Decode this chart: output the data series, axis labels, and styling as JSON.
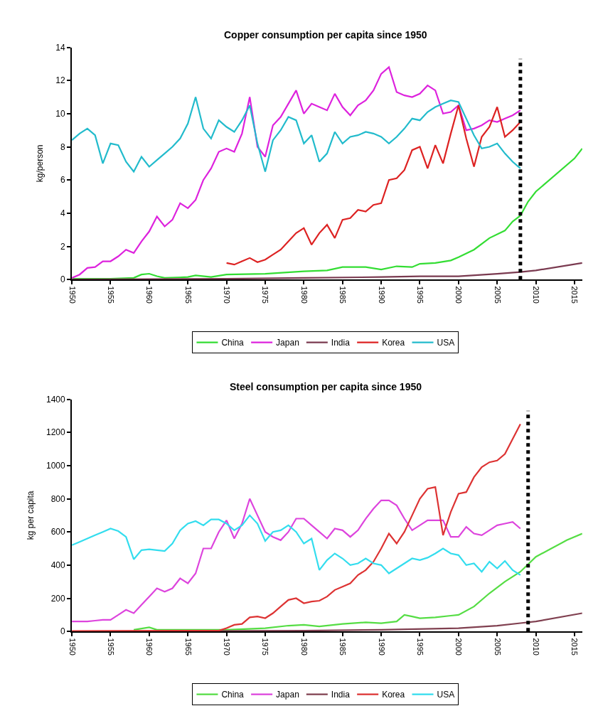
{
  "chart_data": [
    {
      "type": "line",
      "title": "Copper consumption per capita since 1950",
      "ylabel": "kg/person",
      "xlim": [
        1950,
        2016
      ],
      "xticks": [
        1950,
        1955,
        1960,
        1965,
        1970,
        1975,
        1980,
        1985,
        1990,
        1995,
        2000,
        2005,
        2010,
        2015
      ],
      "ylim": [
        0,
        14
      ],
      "yticks": [
        0,
        2,
        4,
        6,
        8,
        10,
        12,
        14
      ],
      "legend": "bottom",
      "ref_lines": [
        {
          "axis": "x",
          "value": 2008,
          "color": "#000000",
          "line_style": "dotted"
        }
      ],
      "series": [
        {
          "name": "China",
          "color": "#33dd33",
          "x": [
            1950,
            1955,
            1958,
            1959,
            1960,
            1961,
            1962,
            1965,
            1966,
            1968,
            1970,
            1975,
            1980,
            1983,
            1985,
            1988,
            1990,
            1992,
            1994,
            1995,
            1997,
            1999,
            2000,
            2002,
            2004,
            2006,
            2007,
            2008,
            2009,
            2010,
            2015,
            2016
          ],
          "values": [
            0.05,
            0.05,
            0.1,
            0.3,
            0.35,
            0.2,
            0.1,
            0.15,
            0.25,
            0.15,
            0.3,
            0.35,
            0.5,
            0.55,
            0.75,
            0.75,
            0.6,
            0.8,
            0.75,
            0.95,
            1.0,
            1.15,
            1.35,
            1.8,
            2.5,
            2.95,
            3.5,
            3.85,
            4.7,
            5.3,
            7.3,
            7.9
          ]
        },
        {
          "name": "Japan",
          "color": "#dd22dd",
          "x": [
            1950,
            1951,
            1952,
            1953,
            1954,
            1955,
            1956,
            1957,
            1958,
            1959,
            1960,
            1961,
            1962,
            1963,
            1964,
            1965,
            1966,
            1967,
            1968,
            1969,
            1970,
            1971,
            1972,
            1973,
            1974,
            1975,
            1976,
            1977,
            1978,
            1979,
            1980,
            1981,
            1982,
            1983,
            1984,
            1985,
            1986,
            1987,
            1988,
            1989,
            1990,
            1991,
            1992,
            1993,
            1994,
            1995,
            1996,
            1997,
            1998,
            1999,
            2000,
            2001,
            2002,
            2003,
            2004,
            2005,
            2006,
            2007,
            2008
          ],
          "values": [
            0.1,
            0.3,
            0.7,
            0.75,
            1.1,
            1.1,
            1.4,
            1.8,
            1.6,
            2.3,
            2.9,
            3.8,
            3.2,
            3.6,
            4.6,
            4.3,
            4.8,
            6.0,
            6.7,
            7.7,
            7.9,
            7.7,
            8.8,
            11.0,
            8.0,
            7.4,
            9.3,
            9.8,
            10.6,
            11.4,
            10.0,
            10.6,
            10.4,
            10.2,
            11.2,
            10.4,
            9.9,
            10.5,
            10.8,
            11.4,
            12.4,
            12.8,
            11.3,
            11.1,
            11.0,
            11.2,
            11.7,
            11.4,
            10.0,
            10.1,
            10.5,
            9.0,
            9.1,
            9.3,
            9.6,
            9.5,
            9.7,
            9.9,
            10.2
          ]
        },
        {
          "name": "India",
          "color": "#7a3a50",
          "x": [
            1950,
            1970,
            1980,
            1990,
            1995,
            2000,
            2005,
            2008,
            2010,
            2016
          ],
          "values": [
            0,
            0.05,
            0.1,
            0.15,
            0.2,
            0.2,
            0.35,
            0.45,
            0.55,
            1.0
          ]
        },
        {
          "name": "Korea",
          "color": "#dd2222",
          "x": [
            1970,
            1971,
            1972,
            1973,
            1974,
            1975,
            1976,
            1977,
            1978,
            1979,
            1980,
            1981,
            1982,
            1983,
            1984,
            1985,
            1986,
            1987,
            1988,
            1989,
            1990,
            1991,
            1992,
            1993,
            1994,
            1995,
            1996,
            1997,
            1998,
            1999,
            2000,
            2001,
            2002,
            2003,
            2004,
            2005,
            2006,
            2007,
            2008
          ],
          "values": [
            1.0,
            0.9,
            1.1,
            1.3,
            1.05,
            1.2,
            1.5,
            1.8,
            2.3,
            2.8,
            3.1,
            2.1,
            2.8,
            3.3,
            2.5,
            3.6,
            3.7,
            4.2,
            4.1,
            4.5,
            4.6,
            6.0,
            6.1,
            6.6,
            7.8,
            8.0,
            6.7,
            8.1,
            7.0,
            8.8,
            10.5,
            8.5,
            6.8,
            8.6,
            9.2,
            10.4,
            8.6,
            9.0,
            9.5
          ]
        },
        {
          "name": "USA",
          "color": "#22bbcc",
          "x": [
            1950,
            1951,
            1952,
            1953,
            1954,
            1955,
            1956,
            1957,
            1958,
            1959,
            1960,
            1961,
            1962,
            1963,
            1964,
            1965,
            1966,
            1967,
            1968,
            1969,
            1970,
            1971,
            1972,
            1973,
            1974,
            1975,
            1976,
            1977,
            1978,
            1979,
            1980,
            1981,
            1982,
            1983,
            1984,
            1985,
            1986,
            1987,
            1988,
            1989,
            1990,
            1991,
            1992,
            1993,
            1994,
            1995,
            1996,
            1997,
            1998,
            1999,
            2000,
            2001,
            2002,
            2003,
            2004,
            2005,
            2006,
            2007,
            2008
          ],
          "values": [
            8.4,
            8.8,
            9.1,
            8.7,
            7.0,
            8.2,
            8.1,
            7.1,
            6.5,
            7.4,
            6.8,
            7.2,
            7.6,
            8.0,
            8.5,
            9.4,
            11.0,
            9.1,
            8.5,
            9.6,
            9.2,
            8.9,
            9.6,
            10.5,
            8.2,
            6.5,
            8.4,
            9.0,
            9.8,
            9.6,
            8.2,
            8.7,
            7.1,
            7.6,
            8.9,
            8.2,
            8.6,
            8.7,
            8.9,
            8.8,
            8.6,
            8.2,
            8.6,
            9.1,
            9.7,
            9.6,
            10.1,
            10.4,
            10.6,
            10.8,
            10.7,
            9.7,
            8.7,
            7.9,
            8.0,
            8.2,
            7.6,
            7.1,
            6.7
          ]
        }
      ]
    },
    {
      "type": "line",
      "title": "Steel consumption per capita since 1950",
      "ylabel": "kg per capita",
      "xlim": [
        1950,
        2016
      ],
      "xticks": [
        1950,
        1955,
        1960,
        1965,
        1970,
        1975,
        1980,
        1985,
        1990,
        1995,
        2000,
        2005,
        2010,
        2015
      ],
      "ylim": [
        0,
        1400
      ],
      "yticks": [
        0,
        200,
        400,
        600,
        800,
        1000,
        1200,
        1400
      ],
      "legend": "bottom",
      "ref_lines": [
        {
          "axis": "x",
          "value": 2009,
          "color": "#000000",
          "line_style": "dotted"
        }
      ],
      "series": [
        {
          "name": "China",
          "color": "#55dd44",
          "x": [
            1958,
            1960,
            1961,
            1970,
            1975,
            1978,
            1980,
            1982,
            1985,
            1988,
            1990,
            1992,
            1993,
            1994,
            1995,
            1997,
            1999,
            2000,
            2002,
            2004,
            2006,
            2008,
            2010,
            2012,
            2014,
            2016
          ],
          "values": [
            10,
            25,
            10,
            10,
            20,
            35,
            40,
            30,
            45,
            55,
            50,
            60,
            100,
            90,
            80,
            85,
            95,
            100,
            150,
            230,
            300,
            360,
            450,
            500,
            550,
            590
          ]
        },
        {
          "name": "Japan",
          "color": "#dd44dd",
          "x": [
            1950,
            1951,
            1952,
            1953,
            1954,
            1955,
            1956,
            1957,
            1958,
            1959,
            1960,
            1961,
            1962,
            1963,
            1964,
            1965,
            1966,
            1967,
            1968,
            1969,
            1970,
            1971,
            1972,
            1973,
            1974,
            1975,
            1976,
            1977,
            1978,
            1979,
            1980,
            1981,
            1982,
            1983,
            1984,
            1985,
            1986,
            1987,
            1988,
            1989,
            1990,
            1991,
            1992,
            1993,
            1994,
            1995,
            1996,
            1997,
            1998,
            1999,
            2000,
            2001,
            2002,
            2003,
            2004,
            2005,
            2006,
            2007,
            2008
          ],
          "values": [
            60,
            60,
            60,
            65,
            70,
            70,
            100,
            130,
            110,
            160,
            210,
            260,
            240,
            260,
            320,
            290,
            350,
            500,
            500,
            600,
            670,
            560,
            650,
            800,
            700,
            600,
            570,
            550,
            600,
            680,
            680,
            640,
            600,
            560,
            620,
            610,
            570,
            610,
            680,
            740,
            790,
            790,
            760,
            680,
            610,
            640,
            670,
            670,
            670,
            570,
            570,
            630,
            590,
            580,
            610,
            640,
            650,
            660,
            620
          ]
        },
        {
          "name": "India",
          "color": "#804050",
          "x": [
            1950,
            1980,
            1990,
            2000,
            2005,
            2008,
            2010,
            2016
          ],
          "values": [
            0,
            5,
            10,
            20,
            35,
            50,
            60,
            110
          ]
        },
        {
          "name": "Korea",
          "color": "#dd3333",
          "x": [
            1950,
            1969,
            1970,
            1971,
            1972,
            1973,
            1974,
            1975,
            1976,
            1977,
            1978,
            1979,
            1980,
            1981,
            1982,
            1983,
            1984,
            1985,
            1986,
            1987,
            1988,
            1989,
            1990,
            1991,
            1992,
            1993,
            1994,
            1995,
            1996,
            1997,
            1998,
            1999,
            2000,
            2001,
            2002,
            2003,
            2004,
            2005,
            2006,
            2007,
            2008
          ],
          "values": [
            3,
            5,
            20,
            40,
            45,
            85,
            90,
            80,
            110,
            150,
            190,
            200,
            170,
            180,
            185,
            210,
            250,
            270,
            290,
            340,
            370,
            420,
            500,
            590,
            530,
            600,
            700,
            800,
            860,
            870,
            580,
            720,
            830,
            840,
            930,
            990,
            1020,
            1030,
            1070,
            1160,
            1250
          ]
        },
        {
          "name": "USA",
          "color": "#33ddee",
          "x": [
            1950,
            1951,
            1952,
            1953,
            1954,
            1955,
            1956,
            1957,
            1958,
            1959,
            1960,
            1961,
            1962,
            1963,
            1964,
            1965,
            1966,
            1967,
            1968,
            1969,
            1970,
            1971,
            1972,
            1973,
            1974,
            1975,
            1976,
            1977,
            1978,
            1979,
            1980,
            1981,
            1982,
            1983,
            1984,
            1985,
            1986,
            1987,
            1988,
            1989,
            1990,
            1991,
            1992,
            1993,
            1994,
            1995,
            1996,
            1997,
            1998,
            1999,
            2000,
            2001,
            2002,
            2003,
            2004,
            2005,
            2006,
            2007,
            2008
          ],
          "values": [
            520,
            540,
            560,
            580,
            600,
            620,
            605,
            570,
            435,
            490,
            495,
            490,
            485,
            530,
            610,
            650,
            665,
            640,
            675,
            675,
            650,
            610,
            640,
            700,
            650,
            545,
            600,
            610,
            640,
            600,
            530,
            560,
            370,
            430,
            470,
            440,
            400,
            410,
            440,
            410,
            400,
            350,
            380,
            410,
            440,
            430,
            445,
            470,
            500,
            470,
            460,
            400,
            410,
            360,
            420,
            380,
            425,
            370,
            340
          ]
        }
      ]
    }
  ]
}
